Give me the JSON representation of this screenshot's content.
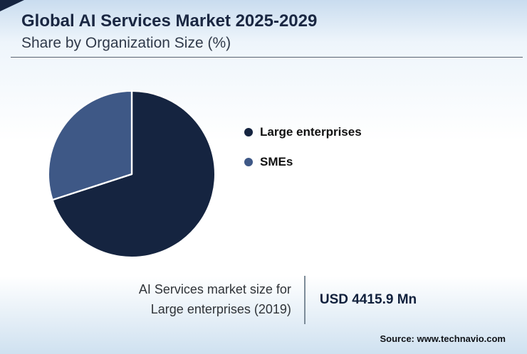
{
  "header": {
    "title": "Global AI Services Market 2025-2029",
    "subtitle": "Share by Organization Size (%)"
  },
  "chart_data": {
    "type": "pie",
    "title": "Global AI Services Market 2025-2029 - Share by Organization Size (%)",
    "slices": [
      {
        "label": "Large enterprises",
        "value": 70,
        "color": "#152440"
      },
      {
        "label": "SMEs",
        "value": 30,
        "color": "#3e5886"
      }
    ],
    "legend_position": "right",
    "start_angle_deg": 0,
    "direction": "clockwise"
  },
  "callout": {
    "caption_line1": "AI Services market size for",
    "caption_line2": "Large enterprises (2019)",
    "value": "USD 4415.9 Mn"
  },
  "footer": {
    "source": "Source: www.technavio.com"
  },
  "colors": {
    "accent_dark": "#152440",
    "accent_blue": "#3e5886",
    "background_tint": "#cfe1f0"
  }
}
